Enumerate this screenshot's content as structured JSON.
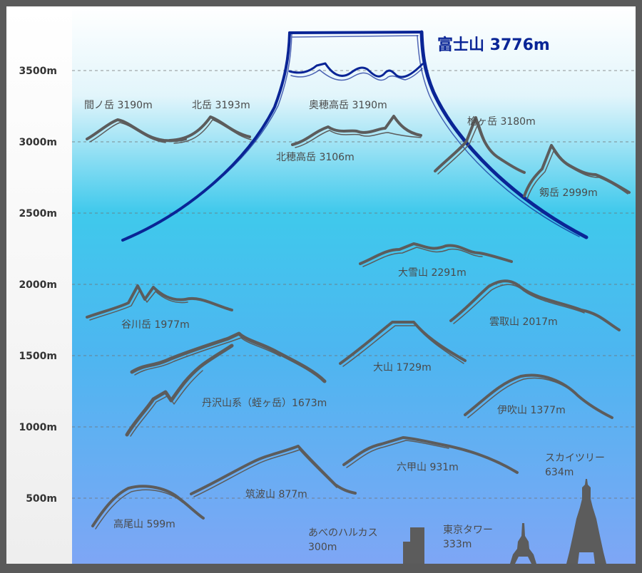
{
  "axis": {
    "ticks": [
      "3500m",
      "3000m",
      "2500m",
      "2000m",
      "1500m",
      "1000m",
      "500m"
    ]
  },
  "colors": {
    "frame": "#5a5a5a",
    "sky_top": "#ffffff",
    "sky_mid": "#3fc9ec",
    "sky_bottom": "#7ea6f5",
    "mountain_stroke": "#5c5c5c",
    "fuji_stroke": "#0a2596",
    "label_text": "#4a4a4a"
  },
  "peaks": {
    "fuji": {
      "label": "富士山 3776m",
      "elevation_m": 3776
    },
    "ainodake": {
      "label": "間ノ岳 3190m",
      "elevation_m": 3190
    },
    "kitadake": {
      "label": "北岳 3193m",
      "elevation_m": 3193
    },
    "okuhotaka": {
      "label": "奥穂高岳 3190m",
      "elevation_m": 3190
    },
    "kitahotaka": {
      "label": "北穂高岳 3106m",
      "elevation_m": 3106
    },
    "yarigatake": {
      "label": "槍ヶ岳 3180m",
      "elevation_m": 3180
    },
    "tsurugi": {
      "label": "剱岳 2999m",
      "elevation_m": 2999
    },
    "daisetsu": {
      "label": "大雪山 2291m",
      "elevation_m": 2291
    },
    "tanigawa": {
      "label": "谷川岳 1977m",
      "elevation_m": 1977
    },
    "kumotori": {
      "label": "雲取山 2017m",
      "elevation_m": 2017
    },
    "daisen": {
      "label": "大山 1729m",
      "elevation_m": 1729
    },
    "tanzawa": {
      "label": "丹沢山系（蛭ヶ岳）1673m",
      "elevation_m": 1673
    },
    "ibuki": {
      "label": "伊吹山 1377m",
      "elevation_m": 1377
    },
    "rokko": {
      "label": "六甲山 931m",
      "elevation_m": 931
    },
    "tsukuba": {
      "label": "筑波山 877m",
      "elevation_m": 877
    },
    "takao": {
      "label": "高尾山 599m",
      "elevation_m": 599
    }
  },
  "structures": {
    "skytree": {
      "line1": "スカイツリー",
      "line2": "634m",
      "height_m": 634,
      "icon": "tower-icon"
    },
    "tokyo_tower": {
      "line1": "東京タワー",
      "line2": "333m",
      "height_m": 333,
      "icon": "tower-icon"
    },
    "abeno_harukas": {
      "line1": "あべのハルカス",
      "line2": "300m",
      "height_m": 300,
      "icon": "building-icon"
    }
  }
}
